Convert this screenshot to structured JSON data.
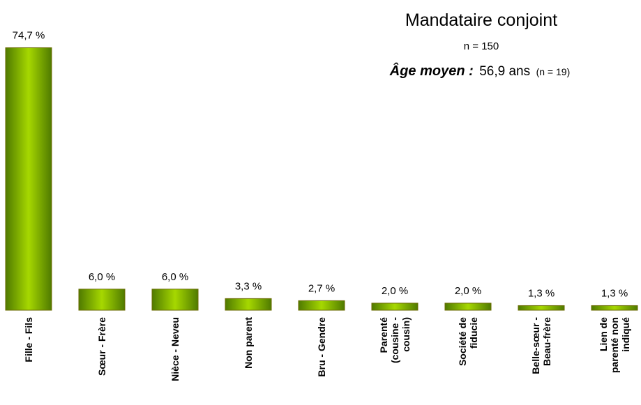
{
  "chart_data": {
    "type": "bar",
    "title": "Mandataire conjoint",
    "subtitle": "n = 150",
    "annotation": {
      "label": "Âge moyen :",
      "value": "56,9 ans",
      "note": "(n = 19)"
    },
    "categories": [
      "Fille - Fils",
      "Sœur - Frère",
      "Nièce - Neveu",
      "Non parent",
      "Bru - Gendre",
      "Parenté\n(cousine -\ncousin)",
      "Société de\nfiducie",
      "Belle-sœur -\nBeau-frère",
      "Lien de\nparenté non\nindiqué"
    ],
    "values": [
      74.7,
      6.0,
      6.0,
      3.3,
      2.7,
      2.0,
      2.0,
      1.3,
      1.3
    ],
    "value_labels": [
      "74,7 %",
      "6,0 %",
      "6,0 %",
      "3,3 %",
      "2,7 %",
      "2,0 %",
      "2,0 %",
      "1,3 %",
      "1,3 %"
    ],
    "color": "#8cc000",
    "ylim": [
      0,
      75
    ]
  }
}
